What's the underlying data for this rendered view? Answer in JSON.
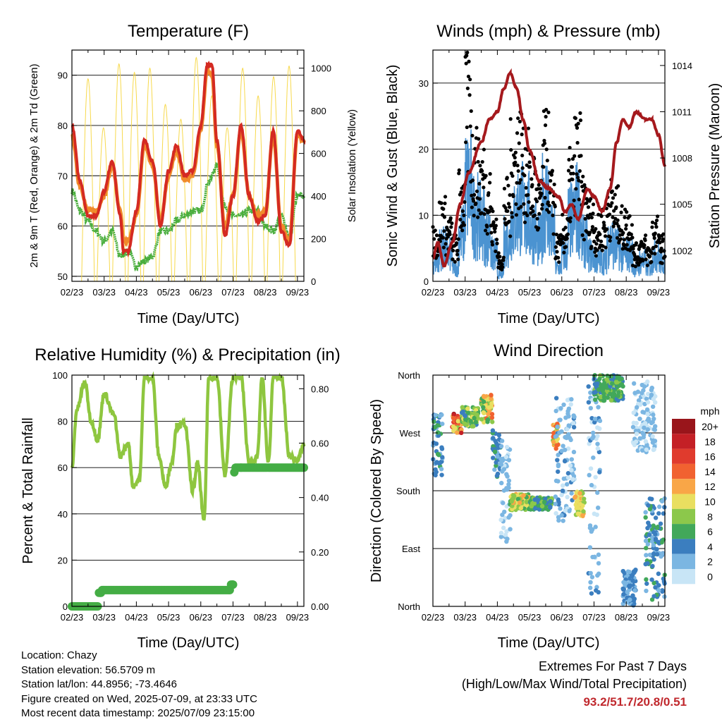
{
  "panels": {
    "temperature": {
      "title": "Temperature (F)",
      "xlabel": "Time (Day/UTC)",
      "ylabel_left": "2m & 9m T (Red, Orange) & 2m Td (Green)",
      "ylabel_right": "Solar Insolation (Yellow)"
    },
    "winds": {
      "title": "Winds (mph) & Pressure (mb)",
      "xlabel": "Time (Day/UTC)",
      "ylabel_left": "Sonic Wind & Gust (Blue, Black)",
      "ylabel_right": "Station Pressure (Maroon)"
    },
    "humidity": {
      "title": "Relative Humidity (%) & Precipitation (in)",
      "xlabel": "Time (Day/UTC)",
      "ylabel_left": "Percent & Total Rainfall"
    },
    "direction": {
      "title": "Wind Direction",
      "xlabel": "Time (Day/UTC)",
      "ylabel_left": "Direction (Colored By Speed)",
      "legend_title": "mph"
    }
  },
  "footer": {
    "location": "Location: Chazy",
    "elevation": "Station elevation: 56.5709 m",
    "latlon": "Station lat/lon: 44.8956; -73.4646",
    "created": "Figure created on Wed, 2025-07-09, at 23:33 UTC",
    "timestamp": "Most recent data timestamp: 2025/07/09 23:15:00"
  },
  "extremes": {
    "heading": "Extremes For Past 7 Days",
    "subheading": "(High/Low/Max Wind/Total Precipitation)",
    "values": "93.2/51.7/20.8/0.51"
  },
  "colors": {
    "temp2m": "#d42a22",
    "temp9m": "#f08a2a",
    "dewpoint": "#4aae3d",
    "solar": "#f7d94c",
    "wind": "#4b93d1",
    "gust": "#000000",
    "pressure": "#a5191d",
    "rh": "#8ec63f",
    "precip": "#44ad45"
  },
  "chart_data": [
    {
      "type": "line",
      "id": "temperature",
      "x_ticks": [
        "02/23",
        "03/23",
        "04/23",
        "05/23",
        "06/23",
        "07/23",
        "08/23",
        "09/23"
      ],
      "x_range": [
        2,
        9.2
      ],
      "ylim": [
        49,
        95
      ],
      "y_ticks": [
        50,
        60,
        70,
        80,
        90
      ],
      "y2lim": [
        0,
        1085
      ],
      "y2_ticks": [
        0,
        200,
        400,
        600,
        800,
        1000
      ],
      "grid": true,
      "series": [
        {
          "key": "t2m",
          "x": [
            2.0,
            2.25,
            2.5,
            2.75,
            3.0,
            3.25,
            3.5,
            3.6,
            3.75,
            4.0,
            4.25,
            4.5,
            4.75,
            5.0,
            5.25,
            5.5,
            5.75,
            6.0,
            6.2,
            6.35,
            6.5,
            6.75,
            7.0,
            7.25,
            7.5,
            7.75,
            8.0,
            8.25,
            8.5,
            8.75,
            9.0,
            9.2
          ],
          "y": [
            80,
            69,
            62,
            62,
            67,
            73,
            62,
            55,
            55,
            63,
            77,
            73,
            60,
            71,
            76,
            70,
            71,
            80,
            92,
            92,
            77,
            58,
            66,
            80,
            66,
            61,
            62,
            79,
            59,
            56,
            79,
            77
          ]
        },
        {
          "key": "t9m",
          "x": [
            2.0,
            2.25,
            2.5,
            2.75,
            3.0,
            3.25,
            3.5,
            3.6,
            3.75,
            4.0,
            4.25,
            4.5,
            4.75,
            5.0,
            5.25,
            5.5,
            5.75,
            6.0,
            6.2,
            6.35,
            6.5,
            6.75,
            7.0,
            7.25,
            7.5,
            7.75,
            8.0,
            8.25,
            8.5,
            8.75,
            9.0,
            9.2
          ],
          "y": [
            78,
            68,
            63,
            63,
            66,
            72,
            63,
            57,
            57,
            62,
            76,
            72,
            61,
            70,
            75,
            69,
            70,
            79,
            91,
            90,
            76,
            60,
            66,
            79,
            66,
            62,
            63,
            78,
            60,
            57,
            78,
            77
          ]
        },
        {
          "key": "td2m",
          "x": [
            2.0,
            2.25,
            2.5,
            2.75,
            3.0,
            3.25,
            3.5,
            3.75,
            4.0,
            4.25,
            4.5,
            4.75,
            5.0,
            5.25,
            5.5,
            5.75,
            6.0,
            6.25,
            6.5,
            6.75,
            7.0,
            7.25,
            7.5,
            7.75,
            8.0,
            8.25,
            8.5,
            8.75,
            9.0,
            9.2
          ],
          "y": [
            67,
            63,
            61,
            59,
            57,
            59,
            54,
            55,
            52,
            53,
            54,
            59,
            59,
            61,
            62,
            63,
            63,
            69,
            72,
            64,
            62,
            62,
            63,
            63,
            60,
            59,
            62,
            58,
            66,
            66
          ]
        },
        {
          "key": "solar",
          "cycle_start": 2.5,
          "cycle_days": 1.0,
          "peaks": [
            950,
            720,
            1020,
            980,
            1000,
            830,
            760,
            1050,
            870,
            720,
            1000,
            870,
            960,
            1010,
            900
          ]
        }
      ]
    },
    {
      "type": "line",
      "id": "winds",
      "x_ticks": [
        "02/23",
        "03/23",
        "04/23",
        "05/23",
        "06/23",
        "07/23",
        "08/23",
        "09/23"
      ],
      "x_range": [
        2,
        9.2
      ],
      "ylim": [
        0,
        35
      ],
      "y_ticks": [
        0,
        10,
        20,
        30
      ],
      "y2lim": [
        1000.0,
        1015.0
      ],
      "y2_ticks": [
        1002,
        1005,
        1008,
        1011,
        1014
      ],
      "grid": true,
      "series": [
        {
          "key": "pressure",
          "x": [
            2.0,
            2.15,
            2.35,
            2.6,
            2.85,
            3.1,
            3.5,
            3.75,
            4.0,
            4.2,
            4.4,
            4.6,
            4.8,
            5.0,
            5.3,
            5.6,
            5.9,
            6.1,
            6.3,
            6.5,
            6.8,
            7.0,
            7.25,
            7.5,
            7.7,
            7.9,
            8.1,
            8.3,
            8.6,
            8.8,
            9.0,
            9.2
          ],
          "y": [
            1001.5,
            1002.5,
            1001.0,
            1002.5,
            1005.0,
            1007.0,
            1009.0,
            1010.5,
            1011.0,
            1012.5,
            1013.5,
            1012.5,
            1010.5,
            1008.5,
            1006.5,
            1006.0,
            1005.5,
            1004.5,
            1005.0,
            1004.0,
            1006.0,
            1005.5,
            1004.5,
            1006.0,
            1009.0,
            1010.5,
            1010.0,
            1011.0,
            1010.5,
            1010.5,
            1009.5,
            1007.5
          ]
        },
        {
          "key": "wind",
          "avg": [
            3,
            5,
            4,
            2,
            7,
            14,
            10,
            9,
            7,
            4,
            1,
            6,
            9,
            11,
            10,
            8,
            6,
            12,
            7,
            2,
            4,
            9,
            11,
            6,
            4,
            3,
            3,
            6,
            5,
            4,
            4,
            2,
            3,
            2,
            4,
            3
          ]
        },
        {
          "key": "gust",
          "avg": [
            6,
            9,
            7,
            5,
            12,
            24,
            17,
            15,
            13,
            8,
            3,
            11,
            17,
            19,
            16,
            14,
            11,
            18,
            12,
            5,
            7,
            14,
            18,
            11,
            9,
            7,
            8,
            11,
            10,
            8,
            8,
            4,
            5,
            4,
            7,
            5
          ]
        }
      ]
    },
    {
      "type": "line",
      "id": "humidity",
      "x_ticks": [
        "02/23",
        "03/23",
        "04/23",
        "05/23",
        "06/23",
        "07/23",
        "08/23",
        "09/23"
      ],
      "x_range": [
        2,
        9.2
      ],
      "ylim": [
        0,
        100
      ],
      "y_ticks": [
        0,
        20,
        40,
        60,
        80,
        100
      ],
      "y2lim": [
        0,
        0.85
      ],
      "y2_ticks": [
        "0.00",
        "0.20",
        "0.40",
        "0.60",
        "0.80"
      ],
      "grid": true,
      "series": [
        {
          "key": "rh",
          "x": [
            2.0,
            2.15,
            2.4,
            2.6,
            2.8,
            3.0,
            3.3,
            3.5,
            3.75,
            3.9,
            4.1,
            4.25,
            4.5,
            4.7,
            4.9,
            5.1,
            5.25,
            5.5,
            5.75,
            5.9,
            6.1,
            6.25,
            6.5,
            6.75,
            7.0,
            7.25,
            7.5,
            7.75,
            7.9,
            8.1,
            8.25,
            8.5,
            8.75,
            9.0,
            9.2
          ],
          "y": [
            60,
            85,
            97,
            80,
            72,
            92,
            83,
            65,
            70,
            52,
            55,
            99,
            99,
            65,
            52,
            62,
            78,
            79,
            50,
            62,
            37,
            99,
            99,
            57,
            99,
            99,
            62,
            64,
            99,
            62,
            99,
            99,
            65,
            63,
            70
          ]
        },
        {
          "key": "precip",
          "x": [
            2.0,
            2.8,
            2.9,
            3.0,
            6.9,
            7.0,
            7.25,
            9.2
          ],
          "y": [
            0.0,
            0.0,
            0.05,
            0.06,
            0.06,
            0.08,
            0.51,
            0.51
          ]
        }
      ]
    },
    {
      "type": "scatter",
      "id": "direction",
      "x_ticks": [
        "02/23",
        "03/23",
        "04/23",
        "05/23",
        "06/23",
        "07/23",
        "08/23",
        "09/23"
      ],
      "x_range": [
        2,
        9.2
      ],
      "ylim": [
        0,
        360
      ],
      "y_ticks": [
        "North",
        "East",
        "South",
        "West",
        "North"
      ],
      "grid": true,
      "legend": {
        "title": "mph",
        "labels": [
          "20+",
          "18",
          "16",
          "14",
          "12",
          "10",
          "8",
          "6",
          "4",
          "2",
          "0"
        ],
        "colors": [
          "#99151b",
          "#c42026",
          "#e03b2d",
          "#f16230",
          "#f9a647",
          "#e9df60",
          "#8cc84b",
          "#42a85a",
          "#3b7ebf",
          "#7bb6e2",
          "#c8e5f6"
        ]
      },
      "clusters": [
        {
          "x": [
            2.0,
            2.3
          ],
          "dir": [
            200,
            300
          ],
          "speed": [
            2,
            6
          ]
        },
        {
          "x": [
            2.6,
            2.9
          ],
          "dir": [
            270,
            300
          ],
          "speed": [
            8,
            20
          ]
        },
        {
          "x": [
            2.9,
            3.4
          ],
          "dir": [
            280,
            310
          ],
          "speed": [
            4,
            10
          ]
        },
        {
          "x": [
            3.5,
            3.85
          ],
          "dir": [
            285,
            330
          ],
          "speed": [
            6,
            14
          ]
        },
        {
          "x": [
            3.85,
            4.1
          ],
          "dir": [
            200,
            280
          ],
          "speed": [
            2,
            6
          ]
        },
        {
          "x": [
            4.1,
            4.4
          ],
          "dir": [
            100,
            260
          ],
          "speed": [
            0,
            3
          ]
        },
        {
          "x": [
            4.4,
            5.0
          ],
          "dir": [
            150,
            175
          ],
          "speed": [
            6,
            12
          ]
        },
        {
          "x": [
            5.0,
            5.7
          ],
          "dir": [
            150,
            170
          ],
          "speed": [
            4,
            8
          ]
        },
        {
          "x": [
            5.7,
            5.9
          ],
          "dir": [
            240,
            285
          ],
          "speed": [
            8,
            14
          ]
        },
        {
          "x": [
            5.8,
            6.4
          ],
          "dir": [
            130,
            330
          ],
          "speed": [
            0,
            4
          ]
        },
        {
          "x": [
            6.4,
            6.7
          ],
          "dir": [
            140,
            180
          ],
          "speed": [
            8,
            12
          ]
        },
        {
          "x": [
            6.8,
            7.2
          ],
          "dir": [
            0,
            360
          ],
          "speed": [
            0,
            4
          ]
        },
        {
          "x": [
            7.0,
            7.9
          ],
          "dir": [
            320,
            360
          ],
          "speed": [
            4,
            8
          ]
        },
        {
          "x": [
            7.9,
            8.3
          ],
          "dir": [
            0,
            60
          ],
          "speed": [
            2,
            5
          ]
        },
        {
          "x": [
            8.2,
            8.9
          ],
          "dir": [
            240,
            350
          ],
          "speed": [
            0,
            3
          ]
        },
        {
          "x": [
            8.6,
            9.2
          ],
          "dir": [
            10,
            170
          ],
          "speed": [
            2,
            6
          ]
        }
      ]
    }
  ]
}
